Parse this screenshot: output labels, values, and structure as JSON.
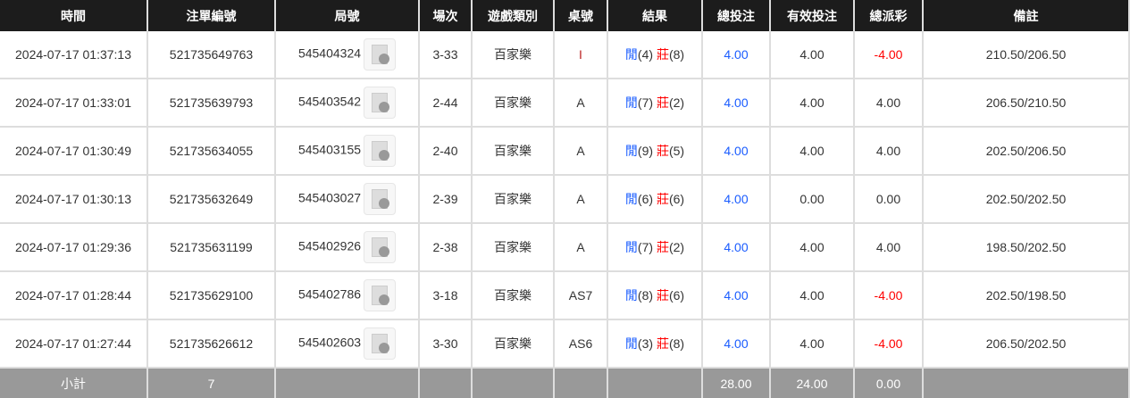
{
  "headers": [
    "時間",
    "注單編號",
    "局號",
    "場次",
    "遊戲類別",
    "桌號",
    "結果",
    "總投注",
    "有效投注",
    "總派彩",
    "備註"
  ],
  "rows": [
    {
      "time": "2024-07-17 01:37:13",
      "bet_id": "521735649763",
      "round": "545404324",
      "session": "3-33",
      "game": "百家樂",
      "table": "I",
      "player_label": "閒",
      "player": "(4)",
      "banker_label": "莊",
      "banker": "(8)",
      "total": "4.00",
      "valid": "4.00",
      "payout": "-4.00",
      "payout_neg": true,
      "note": "210.50/206.50"
    },
    {
      "time": "2024-07-17 01:33:01",
      "bet_id": "521735639793",
      "round": "545403542",
      "session": "2-44",
      "game": "百家樂",
      "table": "A",
      "player_label": "閒",
      "player": "(7)",
      "banker_label": "莊",
      "banker": "(2)",
      "total": "4.00",
      "valid": "4.00",
      "payout": "4.00",
      "payout_neg": false,
      "note": "206.50/210.50"
    },
    {
      "time": "2024-07-17 01:30:49",
      "bet_id": "521735634055",
      "round": "545403155",
      "session": "2-40",
      "game": "百家樂",
      "table": "A",
      "player_label": "閒",
      "player": "(9)",
      "banker_label": "莊",
      "banker": "(5)",
      "total": "4.00",
      "valid": "4.00",
      "payout": "4.00",
      "payout_neg": false,
      "note": "202.50/206.50"
    },
    {
      "time": "2024-07-17 01:30:13",
      "bet_id": "521735632649",
      "round": "545403027",
      "session": "2-39",
      "game": "百家樂",
      "table": "A",
      "player_label": "閒",
      "player": "(6)",
      "banker_label": "莊",
      "banker": "(6)",
      "total": "4.00",
      "valid": "0.00",
      "payout": "0.00",
      "payout_neg": false,
      "note": "202.50/202.50"
    },
    {
      "time": "2024-07-17 01:29:36",
      "bet_id": "521735631199",
      "round": "545402926",
      "session": "2-38",
      "game": "百家樂",
      "table": "A",
      "player_label": "閒",
      "player": "(7)",
      "banker_label": "莊",
      "banker": "(2)",
      "total": "4.00",
      "valid": "4.00",
      "payout": "4.00",
      "payout_neg": false,
      "note": "198.50/202.50"
    },
    {
      "time": "2024-07-17 01:28:44",
      "bet_id": "521735629100",
      "round": "545402786",
      "session": "3-18",
      "game": "百家樂",
      "table": "AS7",
      "player_label": "閒",
      "player": "(8)",
      "banker_label": "莊",
      "banker": "(6)",
      "total": "4.00",
      "valid": "4.00",
      "payout": "-4.00",
      "payout_neg": true,
      "note": "202.50/198.50"
    },
    {
      "time": "2024-07-17 01:27:44",
      "bet_id": "521735626612",
      "round": "545402603",
      "session": "3-30",
      "game": "百家樂",
      "table": "AS6",
      "player_label": "閒",
      "player": "(3)",
      "banker_label": "莊",
      "banker": "(8)",
      "total": "4.00",
      "valid": "4.00",
      "payout": "-4.00",
      "payout_neg": true,
      "note": "206.50/202.50"
    }
  ],
  "footer": {
    "label": "小計",
    "count": "7",
    "total": "28.00",
    "valid": "24.00",
    "payout": "0.00"
  },
  "colors": {
    "header_bg": "#1c1c1c",
    "footer_bg": "#999999",
    "blue": "#1a5cff",
    "red": "#ff0000"
  }
}
